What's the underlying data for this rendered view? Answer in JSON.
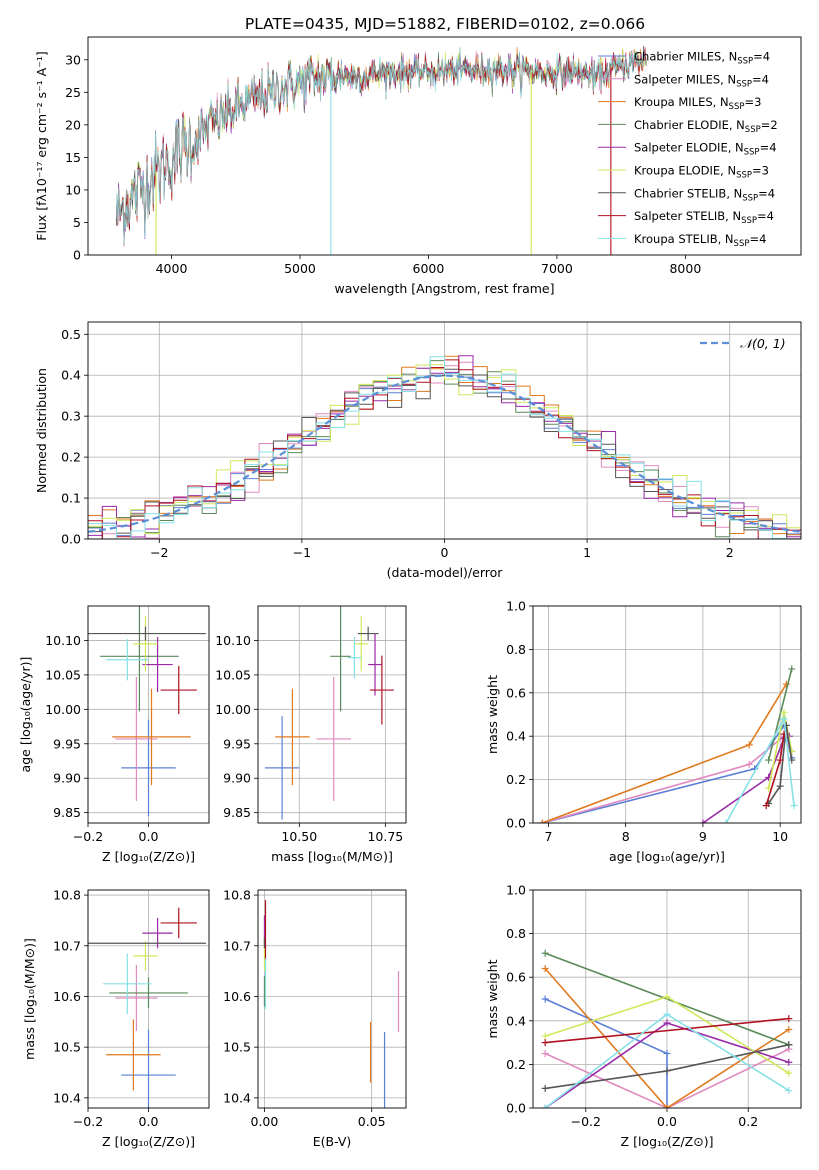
{
  "title": "PLATE=0435, MJD=51882, FIBERID=0102, z=0.066",
  "colors": {
    "Chabrier MILES": "#5b7fd6",
    "Salpeter MILES": "#e08ac0",
    "Kroupa MILES": "#e07a1f",
    "Chabrier ELODIE": "#5a8a5a",
    "Salpeter ELODIE": "#9a2aa8",
    "Kroupa ELODIE": "#cfe85a",
    "Chabrier STELIB": "#555555",
    "Salpeter STELIB": "#b01020",
    "Kroupa STELIB": "#86e0e6"
  },
  "chart_data": [
    {
      "id": "spectrum",
      "type": "line",
      "title": "PLATE=0435, MJD=51882, FIBERID=0102, z=0.066",
      "xlabel": "wavelength [Angstrom, rest frame]",
      "ylabel": "Flux [fλ10⁻¹⁷ erg cm⁻² s⁻¹ A⁻¹]",
      "xlim": [
        3350,
        8900
      ],
      "ylim": [
        0,
        33.5
      ],
      "xticks": [
        4000,
        5000,
        6000,
        7000,
        8000
      ],
      "yticks": [
        0,
        5,
        10,
        15,
        20,
        25,
        30
      ],
      "grid": false,
      "legend": "upper right",
      "continuum": {
        "x": [
          3570,
          3700,
          3800,
          3900,
          4000,
          4100,
          4200,
          4300,
          4500,
          4700,
          4900,
          5100,
          5300,
          5500,
          5700,
          5900,
          6100,
          6300,
          6500,
          6700,
          6900,
          7100,
          7300,
          7500,
          7700
        ],
        "y": [
          6,
          9,
          11,
          13,
          15,
          16.5,
          18,
          20,
          22.5,
          24.5,
          26,
          27,
          27.5,
          27.5,
          28,
          28,
          28.2,
          28.5,
          28.5,
          28.5,
          28,
          28,
          27.5,
          29,
          30
        ]
      },
      "series": [
        {
          "name": "Chabrier MILES, N_SSP=4",
          "legend_main": "Chabrier MILES, N",
          "legend_sub": "SSP",
          "legend_tail": "=4"
        },
        {
          "name": "Salpeter MILES, N_SSP=4",
          "legend_main": "Salpeter MILES, N",
          "legend_sub": "SSP",
          "legend_tail": "=4"
        },
        {
          "name": "Kroupa MILES, N_SSP=3",
          "legend_main": "Kroupa MILES, N",
          "legend_sub": "SSP",
          "legend_tail": "=3"
        },
        {
          "name": "Chabrier ELODIE, N_SSP=2",
          "legend_main": "Chabrier ELODIE, N",
          "legend_sub": "SSP",
          "legend_tail": "=2"
        },
        {
          "name": "Salpeter ELODIE, N_SSP=4",
          "legend_main": "Salpeter ELODIE, N",
          "legend_sub": "SSP",
          "legend_tail": "=4"
        },
        {
          "name": "Kroupa ELODIE, N_SSP=3",
          "legend_main": "Kroupa ELODIE, N",
          "legend_sub": "SSP",
          "legend_tail": "=3"
        },
        {
          "name": "Chabrier STELIB, N_SSP=4",
          "legend_main": "Chabrier STELIB, N",
          "legend_sub": "SSP",
          "legend_tail": "=4"
        },
        {
          "name": "Salpeter STELIB, N_SSP=4",
          "legend_main": "Salpeter STELIB, N",
          "legend_sub": "SSP",
          "legend_tail": "=4"
        },
        {
          "name": "Kroupa STELIB, N_SSP=4",
          "legend_main": "Kroupa STELIB, N",
          "legend_sub": "SSP",
          "legend_tail": "=4"
        }
      ]
    },
    {
      "id": "residuals",
      "type": "step",
      "xlabel": "(data-model)/error",
      "ylabel": "Normed distribution",
      "xlim": [
        -2.5,
        2.5
      ],
      "ylim": [
        0,
        0.53
      ],
      "xticks": [
        -2,
        -1,
        0,
        1,
        2
      ],
      "xticklabels": [
        "−2",
        "−1",
        "0",
        "1",
        "2"
      ],
      "yticks": [
        0.0,
        0.1,
        0.2,
        0.3,
        0.4,
        0.5
      ],
      "grid": true,
      "legend": "upper right",
      "reference": {
        "name": "𝒩(0, 1)",
        "mean": 0,
        "sigma": 1,
        "color": "#5b8fd6"
      },
      "bin_width": 0.1
    },
    {
      "id": "age-vs-Z",
      "type": "errorbar",
      "xlabel": "Z [log₁₀(Z/Z⊙)]",
      "ylabel": "age  [log₁₀(age/yr)]",
      "xlim": [
        -0.2,
        0.2
      ],
      "ylim": [
        9.835,
        10.15
      ],
      "xticks": [
        -0.2,
        0.0
      ],
      "xticklabels": [
        "−0.2",
        "0.0"
      ],
      "yticks": [
        9.85,
        9.9,
        9.95,
        10.0,
        10.05,
        10.1
      ],
      "grid": true,
      "points": [
        {
          "series": "Chabrier MILES",
          "x": 0.0,
          "y": 9.915,
          "xerr": 0.09,
          "yerr": 0.07
        },
        {
          "series": "Salpeter MILES",
          "x": -0.04,
          "y": 9.957,
          "xerr": 0.07,
          "yerr": 0.09
        },
        {
          "series": "Kroupa MILES",
          "x": 0.01,
          "y": 9.96,
          "xerr": 0.13,
          "yerr": 0.07
        },
        {
          "series": "Chabrier ELODIE",
          "x": -0.03,
          "y": 10.077,
          "xerr": 0.13,
          "yerr": 0.08
        },
        {
          "series": "Salpeter ELODIE",
          "x": 0.03,
          "y": 10.065,
          "xerr": 0.05,
          "yerr": 0.04
        },
        {
          "series": "Kroupa ELODIE",
          "x": -0.01,
          "y": 10.095,
          "xerr": 0.04,
          "yerr": 0.04
        },
        {
          "series": "Chabrier STELIB",
          "x": -0.01,
          "y": 10.11,
          "xerr": 0.2,
          "yerr": 0.01
        },
        {
          "series": "Salpeter STELIB",
          "x": 0.1,
          "y": 10.028,
          "xerr": 0.06,
          "yerr": 0.035
        },
        {
          "series": "Kroupa STELIB",
          "x": -0.07,
          "y": 10.072,
          "xerr": 0.07,
          "yerr": 0.03
        }
      ]
    },
    {
      "id": "age-vs-mass",
      "type": "errorbar",
      "xlabel": "mass [log₁₀(M/M⊙)]",
      "ylabel": "",
      "xlim": [
        10.38,
        10.81
      ],
      "ylim": [
        9.835,
        10.15
      ],
      "xticks": [
        10.5,
        10.75
      ],
      "xticklabels": [
        "10.50",
        "10.75"
      ],
      "yticks": [
        9.85,
        9.9,
        9.95,
        10.0,
        10.05,
        10.1
      ],
      "grid": true,
      "points": [
        {
          "series": "Chabrier MILES",
          "x": 10.45,
          "y": 9.915,
          "xerr": 0.05,
          "yerr": 0.075
        },
        {
          "series": "Salpeter MILES",
          "x": 10.6,
          "y": 9.957,
          "xerr": 0.05,
          "yerr": 0.09
        },
        {
          "series": "Kroupa MILES",
          "x": 10.48,
          "y": 9.96,
          "xerr": 0.05,
          "yerr": 0.07
        },
        {
          "series": "Chabrier ELODIE",
          "x": 10.62,
          "y": 10.077,
          "xerr": 0.03,
          "yerr": 0.08
        },
        {
          "series": "Salpeter ELODIE",
          "x": 10.72,
          "y": 10.065,
          "xerr": 0.02,
          "yerr": 0.045
        },
        {
          "series": "Kroupa ELODIE",
          "x": 10.68,
          "y": 10.095,
          "xerr": 0.02,
          "yerr": 0.04
        },
        {
          "series": "Chabrier STELIB",
          "x": 10.7,
          "y": 10.11,
          "xerr": 0.03,
          "yerr": 0.01
        },
        {
          "series": "Salpeter STELIB",
          "x": 10.74,
          "y": 10.028,
          "xerr": 0.035,
          "yerr": 0.05
        },
        {
          "series": "Kroupa STELIB",
          "x": 10.66,
          "y": 10.075,
          "xerr": 0.02,
          "yerr": 0.03
        }
      ]
    },
    {
      "id": "weight-vs-age",
      "type": "line",
      "xlabel": "age  [log₁₀(age/yr)]",
      "ylabel": "mass weight",
      "xlim": [
        6.8,
        10.27
      ],
      "ylim": [
        0.0,
        1.0
      ],
      "xticks": [
        7,
        8,
        9,
        10
      ],
      "yticks": [
        0.0,
        0.2,
        0.4,
        0.6,
        0.8,
        1.0
      ],
      "grid": true,
      "series": [
        {
          "name": "Chabrier MILES",
          "x": [
            6.92,
            9.67,
            10.05,
            10.15
          ],
          "y": [
            0.0,
            0.25,
            0.45,
            0.3
          ]
        },
        {
          "name": "Salpeter MILES",
          "x": [
            6.92,
            9.6,
            10.05,
            10.15
          ],
          "y": [
            0.0,
            0.27,
            0.4,
            0.33
          ]
        },
        {
          "name": "Kroupa MILES",
          "x": [
            6.92,
            9.6,
            10.08
          ],
          "y": [
            0.0,
            0.36,
            0.64
          ]
        },
        {
          "name": "Chabrier ELODIE",
          "x": [
            9.85,
            10.15
          ],
          "y": [
            0.29,
            0.71
          ]
        },
        {
          "name": "Salpeter ELODIE",
          "x": [
            9.0,
            9.85,
            10.05,
            10.12
          ],
          "y": [
            0.0,
            0.21,
            0.39,
            0.4
          ]
        },
        {
          "name": "Kroupa ELODIE",
          "x": [
            9.85,
            10.05,
            10.15
          ],
          "y": [
            0.16,
            0.51,
            0.33
          ]
        },
        {
          "name": "Chabrier STELIB",
          "x": [
            9.85,
            10.0,
            10.08,
            10.15
          ],
          "y": [
            0.09,
            0.17,
            0.45,
            0.29
          ]
        },
        {
          "name": "Salpeter STELIB",
          "x": [
            9.82,
            10.0,
            10.05
          ],
          "y": [
            0.08,
            0.29,
            0.41
          ]
        },
        {
          "name": "Kroupa STELIB",
          "x": [
            9.3,
            10.05,
            10.18
          ],
          "y": [
            0.0,
            0.48,
            0.08
          ]
        }
      ]
    },
    {
      "id": "mass-vs-Z",
      "type": "errorbar",
      "xlabel": "Z [log₁₀(Z/Z⊙)]",
      "ylabel": "mass [log₁₀(M/M⊙)]",
      "xlim": [
        -0.2,
        0.2
      ],
      "ylim": [
        10.38,
        10.81
      ],
      "xticks": [
        -0.2,
        0.0
      ],
      "xticklabels": [
        "−0.2",
        "0.0"
      ],
      "yticks": [
        10.4,
        10.5,
        10.6,
        10.7,
        10.8
      ],
      "grid": true,
      "points": [
        {
          "series": "Chabrier MILES",
          "x": 0.0,
          "y": 10.445,
          "xerr": 0.09,
          "yerr": 0.09
        },
        {
          "series": "Salpeter MILES",
          "x": -0.04,
          "y": 10.597,
          "xerr": 0.07,
          "yerr": 0.065
        },
        {
          "series": "Kroupa MILES",
          "x": -0.05,
          "y": 10.485,
          "xerr": 0.09,
          "yerr": 0.07
        },
        {
          "series": "Chabrier ELODIE",
          "x": 0.0,
          "y": 10.607,
          "xerr": 0.13,
          "yerr": 0.03
        },
        {
          "series": "Salpeter ELODIE",
          "x": 0.03,
          "y": 10.725,
          "xerr": 0.05,
          "yerr": 0.03
        },
        {
          "series": "Kroupa ELODIE",
          "x": -0.01,
          "y": 10.68,
          "xerr": 0.04,
          "yerr": 0.03
        },
        {
          "series": "Chabrier STELIB",
          "x": -0.01,
          "y": 10.705,
          "xerr": 0.2,
          "yerr": 0.0
        },
        {
          "series": "Salpeter STELIB",
          "x": 0.1,
          "y": 10.745,
          "xerr": 0.06,
          "yerr": 0.03
        },
        {
          "series": "Kroupa STELIB",
          "x": -0.07,
          "y": 10.625,
          "xerr": 0.08,
          "yerr": 0.06
        }
      ]
    },
    {
      "id": "mass-vs-ebv",
      "type": "errorbar",
      "xlabel": "E(B-V)",
      "ylabel": "",
      "xlim": [
        -0.003,
        0.066
      ],
      "ylim": [
        10.38,
        10.81
      ],
      "xticks": [
        0.0,
        0.05
      ],
      "xticklabels": [
        "0.00",
        "0.05"
      ],
      "yticks": [
        10.4,
        10.5,
        10.6,
        10.7,
        10.8
      ],
      "grid": true,
      "points": [
        {
          "series": "Chabrier MILES",
          "x": 0.056,
          "y": 10.45,
          "xerr": 0.0,
          "yerr": 0.08
        },
        {
          "series": "Salpeter MILES",
          "x": 0.0625,
          "y": 10.59,
          "xerr": 0.0,
          "yerr": 0.06
        },
        {
          "series": "Kroupa MILES",
          "x": 0.0495,
          "y": 10.49,
          "xerr": 0.0,
          "yerr": 0.06
        },
        {
          "series": "Chabrier ELODIE",
          "x": 0.0,
          "y": 10.61,
          "xerr": 0.0,
          "yerr": 0.03
        },
        {
          "series": "Salpeter ELODIE",
          "x": 0.0,
          "y": 10.73,
          "xerr": 0.0,
          "yerr": 0.03
        },
        {
          "series": "Kroupa ELODIE",
          "x": 0.0,
          "y": 10.68,
          "xerr": 0.0,
          "yerr": 0.03
        },
        {
          "series": "Chabrier STELIB",
          "x": 0.0,
          "y": 10.705,
          "xerr": 0.0,
          "yerr": 0.01
        },
        {
          "series": "Salpeter STELIB",
          "x": 0.0005,
          "y": 10.73,
          "xerr": 0.0,
          "yerr": 0.06
        },
        {
          "series": "Kroupa STELIB",
          "x": 0.0005,
          "y": 10.625,
          "xerr": 0.0,
          "yerr": 0.05
        }
      ]
    },
    {
      "id": "weight-vs-Z",
      "type": "line",
      "xlabel": "Z [log₁₀(Z/Z⊙)]",
      "ylabel": "mass weight",
      "xlim": [
        -0.33,
        0.33
      ],
      "ylim": [
        0.0,
        1.0
      ],
      "xticks": [
        -0.2,
        0.0,
        0.2
      ],
      "xticklabels": [
        "−0.2",
        "0.0",
        "0.2"
      ],
      "yticks": [
        0.0,
        0.2,
        0.4,
        0.6,
        0.8,
        1.0
      ],
      "grid": true,
      "series": [
        {
          "name": "Chabrier MILES",
          "x": [
            -0.3,
            0.0,
            0.0
          ],
          "y": [
            0.5,
            0.25,
            0.0
          ]
        },
        {
          "name": "Salpeter MILES",
          "x": [
            -0.3,
            0.0,
            0.3
          ],
          "y": [
            0.25,
            0.0,
            0.27
          ]
        },
        {
          "name": "Kroupa MILES",
          "x": [
            -0.3,
            0.0,
            0.3
          ],
          "y": [
            0.64,
            0.0,
            0.36
          ]
        },
        {
          "name": "Chabrier ELODIE",
          "x": [
            -0.3,
            0.3
          ],
          "y": [
            0.71,
            0.29
          ]
        },
        {
          "name": "Salpeter ELODIE",
          "x": [
            -0.3,
            0.0,
            0.3
          ],
          "y": [
            0.0,
            0.39,
            0.21
          ]
        },
        {
          "name": "Kroupa ELODIE",
          "x": [
            -0.3,
            0.0,
            0.3
          ],
          "y": [
            0.33,
            0.51,
            0.16
          ]
        },
        {
          "name": "Chabrier STELIB",
          "x": [
            -0.3,
            0.0,
            0.3
          ],
          "y": [
            0.09,
            0.17,
            0.29
          ]
        },
        {
          "name": "Salpeter STELIB",
          "x": [
            -0.3,
            0.3
          ],
          "y": [
            0.3,
            0.41
          ]
        },
        {
          "name": "Kroupa STELIB",
          "x": [
            -0.3,
            0.0,
            0.3
          ],
          "y": [
            0.0,
            0.43,
            0.08
          ]
        }
      ]
    }
  ]
}
